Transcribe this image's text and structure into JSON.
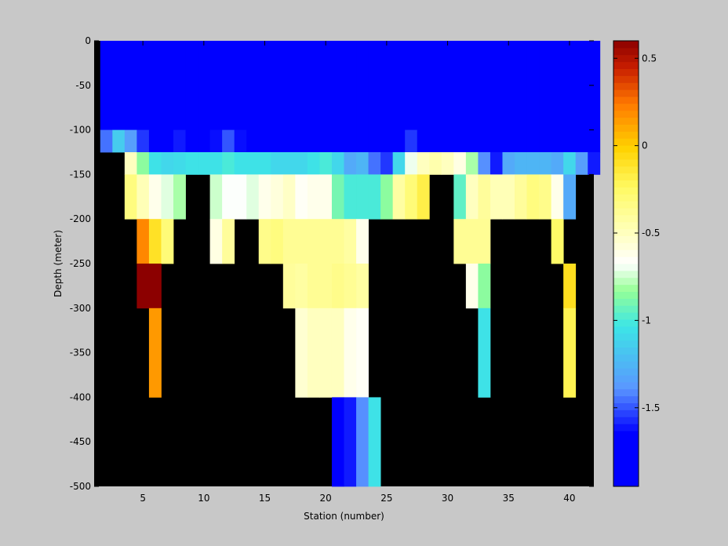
{
  "chart_data": {
    "type": "heatmap",
    "title": "",
    "xlabel": "Station (number)",
    "ylabel": "Depth (meter)",
    "x_ticks": [
      5,
      10,
      15,
      20,
      25,
      30,
      35,
      40
    ],
    "y_ticks": [
      0,
      -50,
      -100,
      -150,
      -200,
      -250,
      -300,
      -350,
      -400,
      -450,
      -500
    ],
    "xlim": [
      1,
      42
    ],
    "ylim": [
      -500,
      0
    ],
    "colorbar": {
      "range": [
        -1.95,
        0.6
      ],
      "ticks": [
        0.5,
        0,
        -0.5,
        -1,
        -1.5
      ],
      "colormap": "jet-white-center"
    },
    "no_data_color": "#000000",
    "background_color": "#c8c8c8",
    "stations": [
      2,
      3,
      4,
      5,
      6,
      7,
      8,
      9,
      10,
      11,
      12,
      13,
      14,
      15,
      16,
      17,
      18,
      19,
      20,
      21,
      22,
      23,
      24,
      25,
      26,
      27,
      28,
      29,
      30,
      31,
      32,
      33,
      34,
      35,
      36,
      37,
      38,
      39,
      40,
      41,
      42
    ],
    "depth_bins": [
      {
        "top": 0,
        "bottom": -100
      },
      {
        "top": -100,
        "bottom": -125
      },
      {
        "top": -125,
        "bottom": -150
      },
      {
        "top": -150,
        "bottom": -200
      },
      {
        "top": -200,
        "bottom": -250
      },
      {
        "top": -250,
        "bottom": -300
      },
      {
        "top": -300,
        "bottom": -400
      },
      {
        "top": -400,
        "bottom": -500
      }
    ],
    "values": [
      [
        -1.95,
        -1.93,
        -1.94,
        -1.95,
        -1.94,
        -1.95,
        -1.93,
        -1.95,
        -1.94,
        -1.95,
        -1.94,
        -1.94,
        -1.95,
        -1.94,
        -1.95,
        -1.95,
        -1.95,
        -1.94,
        -1.95,
        -1.95,
        -1.94,
        -1.95,
        -1.95,
        -1.94,
        -1.95,
        -1.95,
        -1.94,
        -1.95,
        -1.95,
        -1.94,
        -1.95,
        -1.95,
        -1.95,
        -1.97,
        -1.95,
        -1.94,
        -1.95,
        -1.95,
        -1.94,
        -1.95,
        -1.95
      ],
      [
        -1.45,
        -1.15,
        -1.35,
        -1.55,
        -1.65,
        -1.7,
        -1.6,
        -1.72,
        -1.72,
        -1.62,
        -1.5,
        -1.62,
        -1.68,
        -1.72,
        -1.75,
        -1.75,
        -1.8,
        -1.78,
        -1.78,
        -1.72,
        -1.78,
        -1.85,
        -1.75,
        -1.72,
        -1.65,
        -1.55,
        -1.7,
        -1.75,
        -1.8,
        -1.78,
        -1.8,
        -1.85,
        -1.97,
        -1.7,
        -1.75,
        -1.8,
        -1.78,
        -1.72,
        -1.7,
        -1.75,
        -1.78
      ],
      [
        null,
        null,
        -0.5,
        -0.85,
        -1.05,
        -1.1,
        -1.08,
        -1.05,
        -1.05,
        -1.05,
        -1.0,
        -1.05,
        -1.05,
        -1.05,
        -1.1,
        -1.1,
        -1.1,
        -1.05,
        -1.0,
        -1.1,
        -1.3,
        -1.25,
        -1.45,
        -1.55,
        -1.1,
        -0.7,
        -0.5,
        -0.45,
        -0.5,
        -0.6,
        -0.8,
        -1.4,
        -1.6,
        -1.3,
        -1.25,
        -1.25,
        -1.25,
        -1.3,
        -1.1,
        -1.35,
        -1.6
      ],
      [
        null,
        null,
        -0.32,
        -0.48,
        -0.62,
        -0.72,
        -0.8,
        null,
        null,
        -0.75,
        -0.68,
        -0.68,
        -0.72,
        -0.62,
        -0.58,
        -0.52,
        -0.65,
        -0.62,
        -0.62,
        -0.9,
        -1.0,
        -1.0,
        -1.0,
        -0.85,
        -0.42,
        -0.3,
        -0.18,
        null,
        null,
        -0.95,
        -0.5,
        -0.4,
        -0.48,
        -0.48,
        -0.4,
        -0.32,
        -0.35,
        -0.62,
        -1.3,
        null,
        null
      ],
      [
        null,
        null,
        null,
        0.2,
        -0.1,
        -0.3,
        null,
        null,
        null,
        -0.6,
        -0.4,
        null,
        null,
        -0.35,
        -0.32,
        -0.38,
        -0.38,
        -0.38,
        -0.38,
        -0.38,
        -0.42,
        -0.62,
        null,
        null,
        null,
        null,
        null,
        null,
        null,
        -0.38,
        -0.38,
        -0.38,
        null,
        null,
        null,
        null,
        null,
        -0.25,
        null,
        null,
        null
      ],
      [
        null,
        null,
        null,
        0.6,
        0.6,
        null,
        null,
        null,
        null,
        null,
        null,
        null,
        null,
        null,
        null,
        -0.4,
        -0.42,
        -0.38,
        -0.38,
        -0.35,
        -0.38,
        -0.42,
        null,
        null,
        null,
        null,
        null,
        null,
        null,
        null,
        -0.62,
        -0.85,
        null,
        null,
        null,
        null,
        null,
        null,
        -0.08,
        null,
        null
      ],
      [
        null,
        null,
        null,
        null,
        0.15,
        null,
        null,
        null,
        null,
        null,
        null,
        null,
        null,
        null,
        null,
        null,
        -0.55,
        -0.5,
        -0.5,
        -0.5,
        -0.62,
        -0.65,
        null,
        null,
        null,
        null,
        null,
        null,
        null,
        null,
        null,
        -1.05,
        null,
        null,
        null,
        null,
        null,
        null,
        -0.2,
        null,
        null
      ],
      [
        null,
        null,
        null,
        null,
        null,
        null,
        null,
        null,
        null,
        null,
        null,
        null,
        null,
        null,
        null,
        null,
        null,
        null,
        null,
        -1.7,
        -1.6,
        -1.4,
        -1.05,
        null,
        null,
        null,
        null,
        null,
        null,
        null,
        null,
        null,
        null,
        null,
        null,
        null,
        null,
        null,
        null,
        null,
        null
      ]
    ]
  }
}
